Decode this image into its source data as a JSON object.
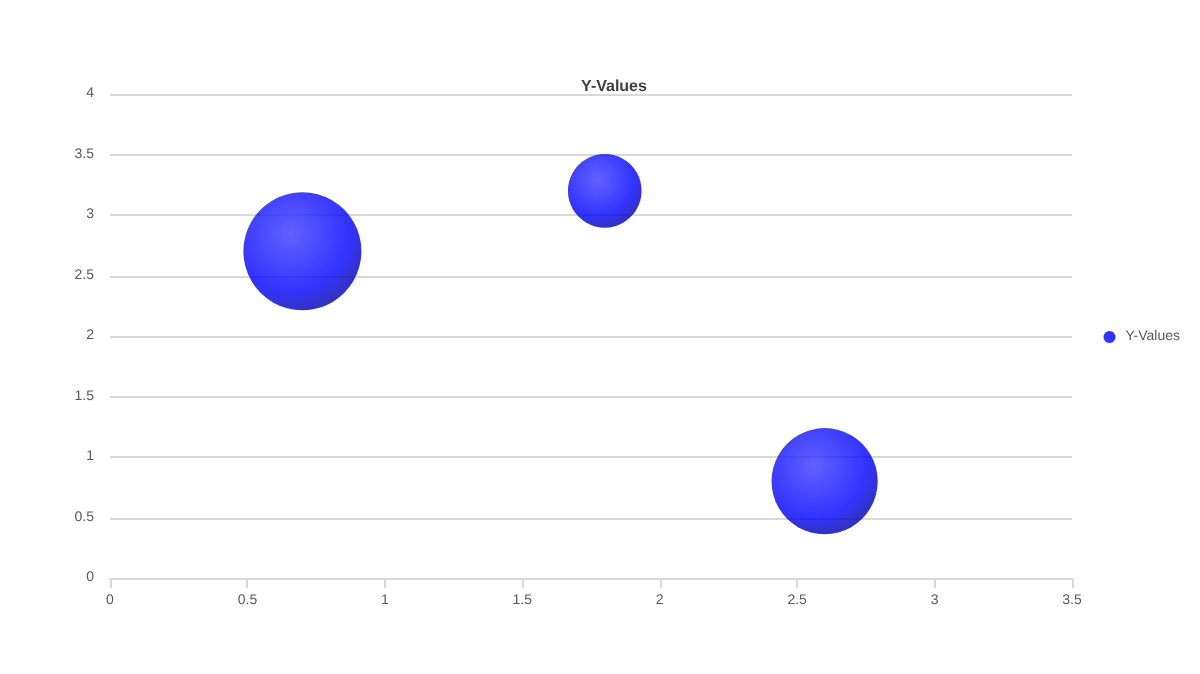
{
  "chart_data": {
    "type": "bubble",
    "title": "Y-Values",
    "x": [
      0.7,
      1.8,
      2.6
    ],
    "series": [
      {
        "name": "Y-Values",
        "color": "#0000ff",
        "values": [
          2.7,
          3.2,
          0.8
        ],
        "sizes": [
          1,
          0.39,
          0.81
        ]
      }
    ],
    "xlim": [
      0,
      3.5
    ],
    "xticks": [
      0,
      0.5,
      1,
      1.5,
      2,
      2.5,
      3,
      3.5
    ],
    "ylim": [
      0,
      4
    ],
    "yticks": [
      0,
      0.5,
      1,
      1.5,
      2,
      2.5,
      3,
      3.5,
      4
    ],
    "grid": "y",
    "legend": "right"
  }
}
